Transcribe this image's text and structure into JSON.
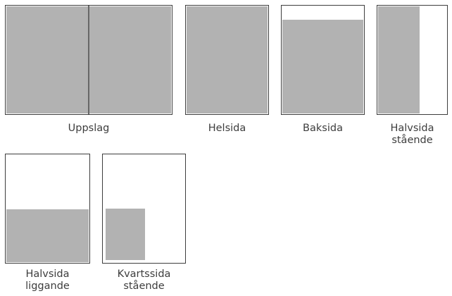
{
  "colors": {
    "frame_border": "#3d3d3d",
    "filled_area": "#b2b2b2",
    "spread_divider": "#666666",
    "caption_text": "#3d3d3d",
    "background": "#ffffff"
  },
  "formats": [
    {
      "id": "uppslag",
      "lines": [
        "Uppslag"
      ]
    },
    {
      "id": "helsida",
      "lines": [
        "Helsida"
      ]
    },
    {
      "id": "baksida",
      "lines": [
        "Baksida"
      ]
    },
    {
      "id": "halvsida-staende",
      "lines": [
        "Halvsida",
        "stående"
      ]
    },
    {
      "id": "halvsida-liggande",
      "lines": [
        "Halvsida",
        "liggande"
      ]
    },
    {
      "id": "kvartssida-staende",
      "lines": [
        "Kvartssida",
        "stående"
      ]
    }
  ]
}
